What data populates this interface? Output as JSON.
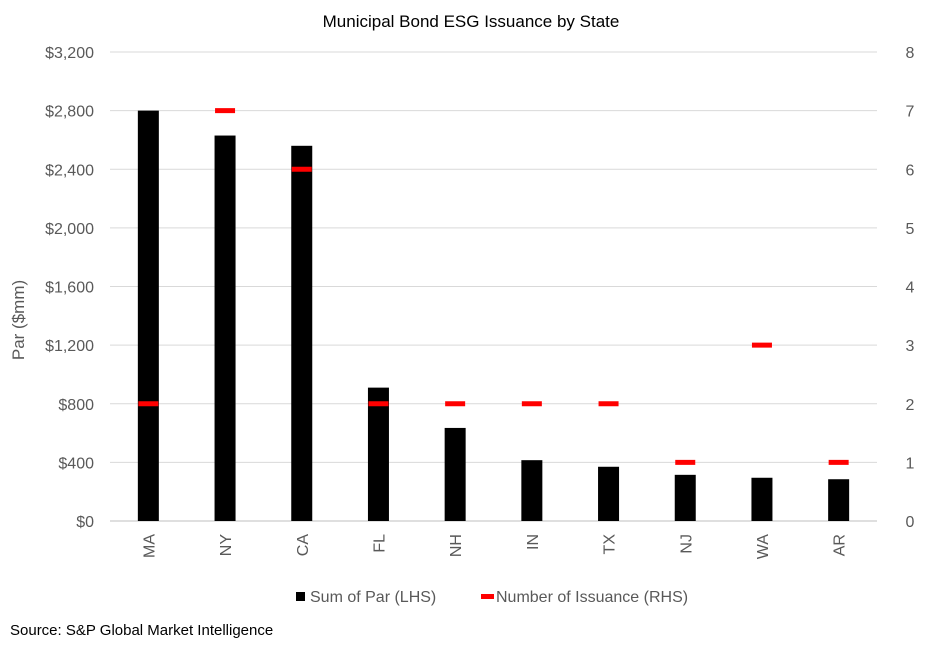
{
  "chart_data": {
    "type": "bar",
    "title": "Municipal Bond ESG Issuance by State",
    "ylabel": "Par ($mm)",
    "categories": [
      "MA",
      "NY",
      "CA",
      "FL",
      "NH",
      "IN",
      "TX",
      "NJ",
      "WA",
      "AR"
    ],
    "ylim": [
      0,
      3200
    ],
    "y_ticks": [
      "$0",
      "$400",
      "$800",
      "$1,200",
      "$1,600",
      "$2,000",
      "$2,400",
      "$2,800",
      "$3,200"
    ],
    "y2lim": [
      0,
      8
    ],
    "y2_ticks": [
      "0",
      "1",
      "2",
      "3",
      "4",
      "5",
      "6",
      "7",
      "8"
    ],
    "grid": true,
    "legend_position": "bottom",
    "series": [
      {
        "name": "Sum of Par (LHS)",
        "type": "bar",
        "axis": "left",
        "color": "#000000",
        "values": [
          2800,
          2630,
          2560,
          910,
          635,
          415,
          370,
          315,
          295,
          285
        ]
      },
      {
        "name": "Number of Issuance (RHS)",
        "type": "marker",
        "axis": "right",
        "color": "#ff0000",
        "values": [
          2,
          7,
          6,
          2,
          2,
          2,
          2,
          1,
          3,
          1
        ]
      }
    ]
  },
  "source": "Source: S&P Global Market Intelligence"
}
